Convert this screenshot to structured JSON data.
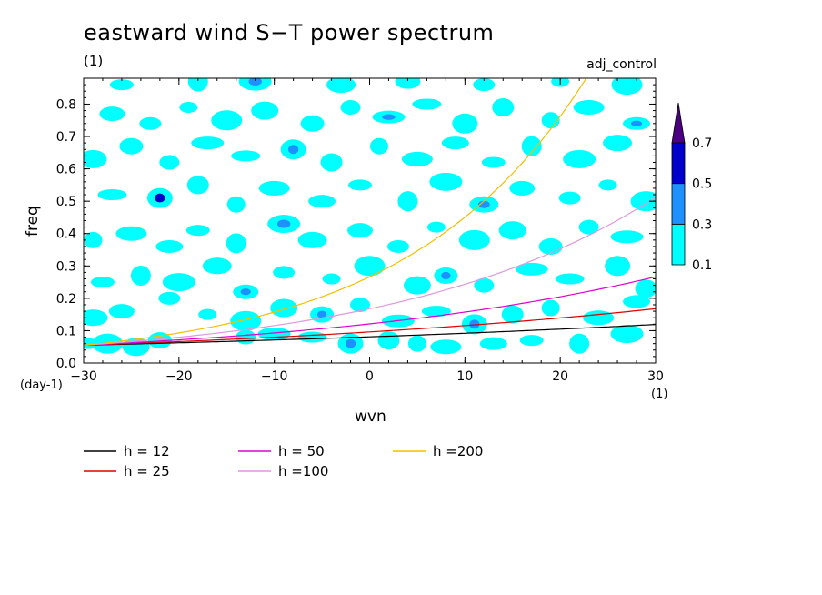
{
  "chart_data": {
    "type": "heatmap",
    "title": "eastward wind S−T power spectrum",
    "subtitle": "(1)",
    "run_label": "adj_control",
    "xlabel": "wvn",
    "ylabel": "freq",
    "x_unit": "(1)",
    "y_unit": "(day-1)",
    "xlim": [
      -30,
      30
    ],
    "ylim": [
      0,
      0.88
    ],
    "xticks": [
      "−30",
      "−20",
      "−10",
      "0",
      "10",
      "20",
      "30"
    ],
    "xtick_values": [
      -30,
      -20,
      -10,
      0,
      10,
      20,
      30
    ],
    "yticks": [
      "0.0",
      "0.1",
      "0.2",
      "0.3",
      "0.4",
      "0.5",
      "0.6",
      "0.7",
      "0.8"
    ],
    "ytick_values": [
      0,
      0.1,
      0.2,
      0.3,
      0.4,
      0.5,
      0.6,
      0.7,
      0.8
    ],
    "colorbar": {
      "levels": [
        "0.1",
        "0.3",
        "0.5",
        "0.7"
      ],
      "level_values": [
        0.1,
        0.3,
        0.5,
        0.7
      ],
      "colors": [
        "#00ffff",
        "#1e90ff",
        "#0000cd",
        "#4b0082"
      ]
    },
    "power_patches": [
      {
        "x": -29.5,
        "y": 0.06,
        "v": 0.15
      },
      {
        "x": -27.5,
        "y": 0.06,
        "v": 0.12
      },
      {
        "x": -24.5,
        "y": 0.05,
        "v": 0.18
      },
      {
        "x": -22,
        "y": 0.07,
        "v": 0.15
      },
      {
        "x": -13,
        "y": 0.08,
        "v": 0.12
      },
      {
        "x": -10,
        "y": 0.09,
        "v": 0.2
      },
      {
        "x": -6,
        "y": 0.08,
        "v": 0.15
      },
      {
        "x": -2,
        "y": 0.06,
        "v": 0.35
      },
      {
        "x": 2,
        "y": 0.07,
        "v": 0.18
      },
      {
        "x": 5,
        "y": 0.06,
        "v": 0.12
      },
      {
        "x": 8,
        "y": 0.05,
        "v": 0.2
      },
      {
        "x": 13,
        "y": 0.06,
        "v": 0.12
      },
      {
        "x": 17,
        "y": 0.07,
        "v": 0.15
      },
      {
        "x": 22,
        "y": 0.06,
        "v": 0.2
      },
      {
        "x": 27,
        "y": 0.09,
        "v": 0.15
      },
      {
        "x": -29,
        "y": 0.14,
        "v": 0.2
      },
      {
        "x": -26,
        "y": 0.16,
        "v": 0.15
      },
      {
        "x": -21,
        "y": 0.2,
        "v": 0.12
      },
      {
        "x": -17,
        "y": 0.15,
        "v": 0.2
      },
      {
        "x": -13,
        "y": 0.13,
        "v": 0.15
      },
      {
        "x": -9,
        "y": 0.17,
        "v": 0.18
      },
      {
        "x": -5,
        "y": 0.15,
        "v": 0.35
      },
      {
        "x": -1,
        "y": 0.18,
        "v": 0.15
      },
      {
        "x": 3,
        "y": 0.13,
        "v": 0.2
      },
      {
        "x": 7,
        "y": 0.16,
        "v": 0.12
      },
      {
        "x": 11,
        "y": 0.12,
        "v": 0.38
      },
      {
        "x": 15,
        "y": 0.15,
        "v": 0.2
      },
      {
        "x": 19,
        "y": 0.17,
        "v": 0.15
      },
      {
        "x": 24,
        "y": 0.14,
        "v": 0.18
      },
      {
        "x": 28,
        "y": 0.19,
        "v": 0.15
      },
      {
        "x": -28,
        "y": 0.25,
        "v": 0.15
      },
      {
        "x": -24,
        "y": 0.27,
        "v": 0.2
      },
      {
        "x": -20,
        "y": 0.25,
        "v": 0.15
      },
      {
        "x": -16,
        "y": 0.3,
        "v": 0.18
      },
      {
        "x": -13,
        "y": 0.22,
        "v": 0.35
      },
      {
        "x": -9,
        "y": 0.28,
        "v": 0.2
      },
      {
        "x": -4,
        "y": 0.26,
        "v": 0.15
      },
      {
        "x": 0,
        "y": 0.3,
        "v": 0.2
      },
      {
        "x": 5,
        "y": 0.24,
        "v": 0.15
      },
      {
        "x": 8,
        "y": 0.27,
        "v": 0.36
      },
      {
        "x": 12,
        "y": 0.24,
        "v": 0.15
      },
      {
        "x": 17,
        "y": 0.29,
        "v": 0.2
      },
      {
        "x": 21,
        "y": 0.26,
        "v": 0.15
      },
      {
        "x": 26,
        "y": 0.3,
        "v": 0.2
      },
      {
        "x": 29,
        "y": 0.23,
        "v": 0.12
      },
      {
        "x": -29,
        "y": 0.38,
        "v": 0.2
      },
      {
        "x": -25,
        "y": 0.4,
        "v": 0.15
      },
      {
        "x": -21,
        "y": 0.36,
        "v": 0.18
      },
      {
        "x": -18,
        "y": 0.41,
        "v": 0.15
      },
      {
        "x": -14,
        "y": 0.37,
        "v": 0.2
      },
      {
        "x": -9,
        "y": 0.43,
        "v": 0.38
      },
      {
        "x": -6,
        "y": 0.38,
        "v": 0.15
      },
      {
        "x": -1,
        "y": 0.41,
        "v": 0.2
      },
      {
        "x": 3,
        "y": 0.36,
        "v": 0.15
      },
      {
        "x": 7,
        "y": 0.42,
        "v": 0.18
      },
      {
        "x": 11,
        "y": 0.38,
        "v": 0.15
      },
      {
        "x": 15,
        "y": 0.41,
        "v": 0.2
      },
      {
        "x": 19,
        "y": 0.36,
        "v": 0.15
      },
      {
        "x": 23,
        "y": 0.42,
        "v": 0.2
      },
      {
        "x": 27,
        "y": 0.39,
        "v": 0.15
      },
      {
        "x": -27,
        "y": 0.52,
        "v": 0.2
      },
      {
        "x": -22,
        "y": 0.51,
        "v": 0.55
      },
      {
        "x": -18,
        "y": 0.55,
        "v": 0.15
      },
      {
        "x": -14,
        "y": 0.49,
        "v": 0.2
      },
      {
        "x": -10,
        "y": 0.54,
        "v": 0.15
      },
      {
        "x": -5,
        "y": 0.5,
        "v": 0.18
      },
      {
        "x": -1,
        "y": 0.55,
        "v": 0.15
      },
      {
        "x": 4,
        "y": 0.5,
        "v": 0.2
      },
      {
        "x": 8,
        "y": 0.56,
        "v": 0.15
      },
      {
        "x": 12,
        "y": 0.49,
        "v": 0.35
      },
      {
        "x": 16,
        "y": 0.54,
        "v": 0.15
      },
      {
        "x": 21,
        "y": 0.51,
        "v": 0.2
      },
      {
        "x": 25,
        "y": 0.55,
        "v": 0.15
      },
      {
        "x": 29,
        "y": 0.5,
        "v": 0.18
      },
      {
        "x": -29,
        "y": 0.63,
        "v": 0.15
      },
      {
        "x": -25,
        "y": 0.67,
        "v": 0.2
      },
      {
        "x": -21,
        "y": 0.62,
        "v": 0.15
      },
      {
        "x": -17,
        "y": 0.68,
        "v": 0.18
      },
      {
        "x": -13,
        "y": 0.64,
        "v": 0.15
      },
      {
        "x": -8,
        "y": 0.66,
        "v": 0.36
      },
      {
        "x": -4,
        "y": 0.62,
        "v": 0.15
      },
      {
        "x": 1,
        "y": 0.67,
        "v": 0.2
      },
      {
        "x": 5,
        "y": 0.63,
        "v": 0.15
      },
      {
        "x": 9,
        "y": 0.68,
        "v": 0.18
      },
      {
        "x": 13,
        "y": 0.62,
        "v": 0.15
      },
      {
        "x": 17,
        "y": 0.67,
        "v": 0.2
      },
      {
        "x": 22,
        "y": 0.63,
        "v": 0.15
      },
      {
        "x": 26,
        "y": 0.68,
        "v": 0.2
      },
      {
        "x": -27,
        "y": 0.77,
        "v": 0.15
      },
      {
        "x": -23,
        "y": 0.74,
        "v": 0.2
      },
      {
        "x": -19,
        "y": 0.79,
        "v": 0.15
      },
      {
        "x": -15,
        "y": 0.75,
        "v": 0.18
      },
      {
        "x": -11,
        "y": 0.78,
        "v": 0.15
      },
      {
        "x": -6,
        "y": 0.74,
        "v": 0.2
      },
      {
        "x": -2,
        "y": 0.79,
        "v": 0.15
      },
      {
        "x": 2,
        "y": 0.76,
        "v": 0.35
      },
      {
        "x": 6,
        "y": 0.8,
        "v": 0.15
      },
      {
        "x": 10,
        "y": 0.74,
        "v": 0.2
      },
      {
        "x": 14,
        "y": 0.79,
        "v": 0.15
      },
      {
        "x": 19,
        "y": 0.75,
        "v": 0.18
      },
      {
        "x": 23,
        "y": 0.79,
        "v": 0.15
      },
      {
        "x": 28,
        "y": 0.74,
        "v": 0.36
      },
      {
        "x": -26,
        "y": 0.86,
        "v": 0.15
      },
      {
        "x": -18,
        "y": 0.87,
        "v": 0.2
      },
      {
        "x": -12,
        "y": 0.87,
        "v": 0.38
      },
      {
        "x": -3,
        "y": 0.86,
        "v": 0.15
      },
      {
        "x": 4,
        "y": 0.87,
        "v": 0.2
      },
      {
        "x": 12,
        "y": 0.86,
        "v": 0.15
      },
      {
        "x": 20,
        "y": 0.87,
        "v": 0.2
      },
      {
        "x": 27,
        "y": 0.86,
        "v": 0.15
      }
    ],
    "series": [
      {
        "name": "h = 12",
        "h": 12,
        "color": "#000000"
      },
      {
        "name": "h = 25",
        "h": 25,
        "color": "#dd0000"
      },
      {
        "name": "h = 50",
        "h": 50,
        "color": "#e000d0"
      },
      {
        "name": "h =100",
        "h": 100,
        "color": "#dd99dd"
      },
      {
        "name": "h =200",
        "h": 200,
        "color": "#f0c000"
      }
    ]
  }
}
